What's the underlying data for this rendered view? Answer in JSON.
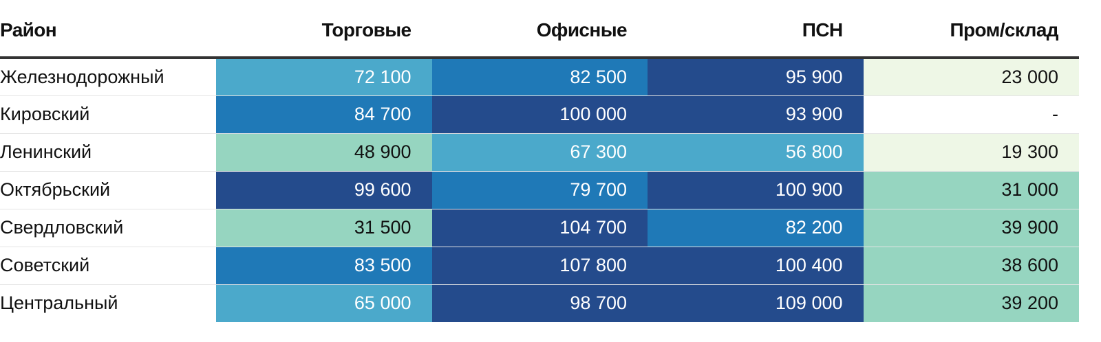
{
  "chart_data": {
    "type": "table",
    "columns": [
      "Район",
      "Торговые",
      "Офисные",
      "ПСН",
      "Пром/склад"
    ],
    "rows": [
      {
        "district": "Железнодорожный",
        "cells": [
          {
            "text": "72 100",
            "value": 72100
          },
          {
            "text": "82 500",
            "value": 82500
          },
          {
            "text": "95 900",
            "value": 95900
          },
          {
            "text": "23 000",
            "value": 23000
          }
        ]
      },
      {
        "district": "Кировский",
        "cells": [
          {
            "text": "84 700",
            "value": 84700
          },
          {
            "text": "100 000",
            "value": 100000
          },
          {
            "text": "93 900",
            "value": 93900
          },
          {
            "text": "-",
            "value": null
          }
        ]
      },
      {
        "district": "Ленинский",
        "cells": [
          {
            "text": "48 900",
            "value": 48900
          },
          {
            "text": "67 300",
            "value": 67300
          },
          {
            "text": "56 800",
            "value": 56800
          },
          {
            "text": "19 300",
            "value": 19300
          }
        ]
      },
      {
        "district": "Октябрьский",
        "cells": [
          {
            "text": "99 600",
            "value": 99600
          },
          {
            "text": "79 700",
            "value": 79700
          },
          {
            "text": "100 900",
            "value": 100900
          },
          {
            "text": "31 000",
            "value": 31000
          }
        ]
      },
      {
        "district": "Свердловский",
        "cells": [
          {
            "text": "31 500",
            "value": 31500
          },
          {
            "text": "104 700",
            "value": 104700
          },
          {
            "text": "82 200",
            "value": 82200
          },
          {
            "text": "39 900",
            "value": 39900
          }
        ]
      },
      {
        "district": "Советский",
        "cells": [
          {
            "text": "83 500",
            "value": 83500
          },
          {
            "text": "107 800",
            "value": 107800
          },
          {
            "text": "100 400",
            "value": 100400
          },
          {
            "text": "38 600",
            "value": 38600
          }
        ]
      },
      {
        "district": "Центральный",
        "cells": [
          {
            "text": "65 000",
            "value": 65000
          },
          {
            "text": "98 700",
            "value": 98700
          },
          {
            "text": "109 000",
            "value": 109000
          },
          {
            "text": "39 200",
            "value": 39200
          }
        ]
      }
    ],
    "color_scale": [
      {
        "min": 0,
        "max": 30000,
        "color": "#eef7e6",
        "text_color": "#111111"
      },
      {
        "min": 30000,
        "max": 50000,
        "color": "#96d5c0",
        "text_color": "#111111"
      },
      {
        "min": 50000,
        "max": 75000,
        "color": "#4ba9cb",
        "text_color": "#ffffff"
      },
      {
        "min": 75000,
        "max": 90000,
        "color": "#1f79b7",
        "text_color": "#ffffff"
      },
      {
        "min": 90000,
        "max": 1000000,
        "color": "#244b8c",
        "text_color": "#ffffff"
      }
    ],
    "empty_cell": {
      "color": "#ffffff",
      "text_color": "#111111"
    }
  }
}
